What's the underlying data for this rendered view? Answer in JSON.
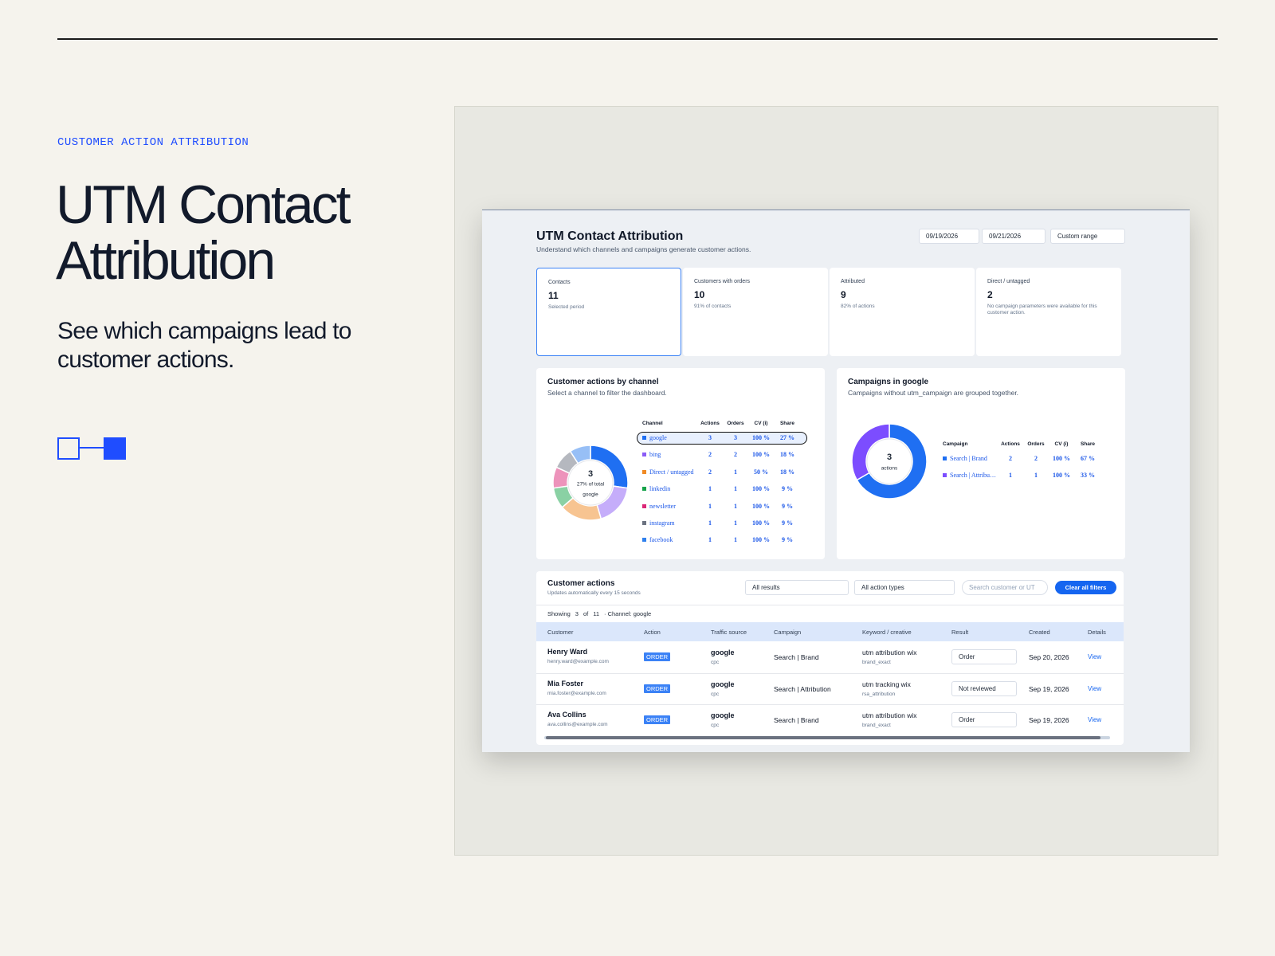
{
  "header": {
    "eyebrow": "CUSTOMER ACTION ATTRIBUTION",
    "title_lines": [
      "UTM Contact",
      "Attribution"
    ],
    "subtitle": "See which campaigns lead to customer actions."
  },
  "dashboard": {
    "title": "UTM Contact Attribution",
    "subtitle": "Understand which channels and campaigns generate customer actions.",
    "date_from": "09/19/2026",
    "date_to": "09/21/2026",
    "range": "Custom range",
    "kpis": [
      {
        "label": "Contacts",
        "value": 11,
        "note": "Selected period"
      },
      {
        "label": "Customers with orders",
        "value": 10,
        "note": "91% of contacts"
      },
      {
        "label": "Attributed",
        "value": 9,
        "note": "82% of actions"
      },
      {
        "label": "Direct / untagged",
        "value": 2,
        "note": "No campaign parameters were available for this customer action."
      }
    ],
    "channels": {
      "title": "Customer actions by channel",
      "subtitle": "Select a channel to filter the dashboard.",
      "center_value": 3,
      "center_share": "27% of total",
      "center_label": "google",
      "columns": [
        "Channel",
        "Actions",
        "Orders",
        "CV (i)",
        "Share"
      ],
      "rows": [
        {
          "name": "google",
          "actions": 3,
          "orders": 3,
          "cv": "100 %",
          "share": "27 %",
          "color": "#1f6ff2"
        },
        {
          "name": "bing",
          "actions": 2,
          "orders": 2,
          "cv": "100 %",
          "share": "18 %",
          "color": "#8b5cf6"
        },
        {
          "name": "Direct / untagged",
          "actions": 2,
          "orders": 1,
          "cv": "50 %",
          "share": "18 %",
          "color": "#f08a24"
        },
        {
          "name": "linkedin",
          "actions": 1,
          "orders": 1,
          "cv": "100 %",
          "share": "9 %",
          "color": "#16a34a"
        },
        {
          "name": "newsletter",
          "actions": 1,
          "orders": 1,
          "cv": "100 %",
          "share": "9 %",
          "color": "#db2777"
        },
        {
          "name": "instagram",
          "actions": 1,
          "orders": 1,
          "cv": "100 %",
          "share": "9 %",
          "color": "#6b7280"
        },
        {
          "name": "facebook",
          "actions": 1,
          "orders": 1,
          "cv": "100 %",
          "share": "9 %",
          "color": "#2f80ed"
        }
      ]
    },
    "campaigns": {
      "title": "Campaigns in google",
      "subtitle": "Campaigns without utm_campaign are grouped together.",
      "center_value": 3,
      "center_label": "actions",
      "columns": [
        "Campaign",
        "Actions",
        "Orders",
        "CV (i)",
        "Share"
      ],
      "rows": [
        {
          "name": "Search | Brand",
          "actions": 2,
          "orders": 2,
          "cv": "100 %",
          "share": "67 %",
          "color": "#1f6ff2"
        },
        {
          "name": "Search | Attribu…",
          "actions": 1,
          "orders": 1,
          "cv": "100 %",
          "share": "33 %",
          "color": "#7c4dff"
        }
      ]
    },
    "actions": {
      "title": "Customer actions",
      "subtitle": "Updates automatically every 15 seconds",
      "filter_result": "All results",
      "filter_type": "All action types",
      "search": "Search customer or UT",
      "clear": "Clear all filters",
      "showing": "Showing",
      "shown": 3,
      "of": "of",
      "total": 11,
      "filter_note": "· Channel: google",
      "columns": [
        "Customer",
        "Action",
        "Traffic source",
        "Campaign",
        "Keyword / creative",
        "Result",
        "Created",
        "Details"
      ],
      "rows": [
        {
          "name": "Henry Ward",
          "email": "henry.ward@example.com",
          "action": "ORDER",
          "source": "google",
          "medium": "cpc",
          "campaign": "Search | Brand",
          "keyword": "utm attribution wix",
          "creative": "brand_exact",
          "result": "Order",
          "created": "Sep 20, 2026",
          "details": "View"
        },
        {
          "name": "Mia Foster",
          "email": "mia.foster@example.com",
          "action": "ORDER",
          "source": "google",
          "medium": "cpc",
          "campaign": "Search | Attribution",
          "keyword": "utm tracking wix",
          "creative": "rsa_attribution",
          "result": "Not reviewed",
          "created": "Sep 19, 2026",
          "details": "View"
        },
        {
          "name": "Ava Collins",
          "email": "ava.collins@example.com",
          "action": "ORDER",
          "source": "google",
          "medium": "cpc",
          "campaign": "Search | Brand",
          "keyword": "utm attribution wix",
          "creative": "brand_exact",
          "result": "Order",
          "created": "Sep 19, 2026",
          "details": "View"
        }
      ]
    }
  }
}
